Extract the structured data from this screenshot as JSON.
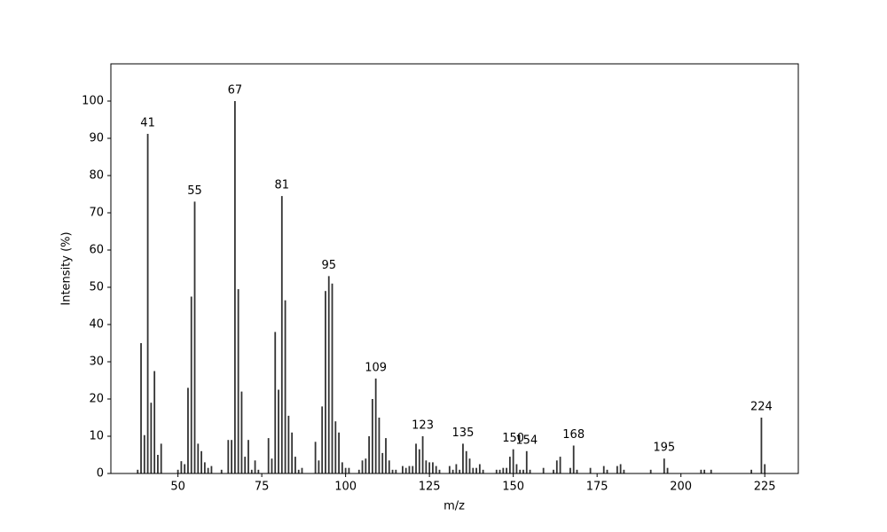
{
  "chart_data": {
    "type": "stem",
    "x_label": "m/z",
    "y_label": "Intensity (%)",
    "color": "#333333",
    "xlim": [
      30,
      235
    ],
    "ylim": [
      0,
      110
    ],
    "xticks": [
      50,
      75,
      100,
      125,
      150,
      175,
      200,
      225
    ],
    "yticks": [
      0,
      10,
      20,
      30,
      40,
      50,
      60,
      70,
      80,
      90,
      100
    ],
    "x": [
      38,
      39,
      40,
      41,
      42,
      43,
      44,
      45,
      50,
      51,
      52,
      53,
      54,
      55,
      56,
      57,
      58,
      59,
      60,
      63,
      65,
      66,
      67,
      68,
      69,
      70,
      71,
      72,
      73,
      74,
      77,
      78,
      79,
      80,
      81,
      82,
      83,
      84,
      85,
      86,
      87,
      91,
      92,
      93,
      94,
      95,
      96,
      97,
      98,
      99,
      100,
      101,
      104,
      105,
      106,
      107,
      108,
      109,
      110,
      111,
      112,
      113,
      114,
      115,
      117,
      118,
      119,
      120,
      121,
      122,
      123,
      124,
      125,
      126,
      127,
      128,
      131,
      132,
      133,
      134,
      135,
      136,
      137,
      138,
      139,
      140,
      141,
      145,
      146,
      147,
      148,
      149,
      150,
      151,
      152,
      153,
      154,
      155,
      159,
      162,
      163,
      164,
      167,
      168,
      169,
      173,
      177,
      178,
      181,
      182,
      183,
      191,
      195,
      196,
      206,
      207,
      209,
      221,
      224,
      225
    ],
    "values": [
      1,
      35,
      10.3,
      91.2,
      19,
      27.5,
      5,
      8,
      1,
      3.3,
      2.5,
      23,
      47.5,
      73,
      8,
      6,
      3,
      1.5,
      2,
      1,
      9,
      9,
      100,
      49.5,
      22,
      4.5,
      9,
      1,
      3.5,
      1,
      9.5,
      4,
      38,
      22.5,
      74.5,
      46.5,
      15.5,
      11,
      4.5,
      1,
      1.5,
      8.5,
      3.5,
      18,
      49,
      53,
      51,
      14,
      11,
      3,
      1.5,
      1.5,
      1,
      3.5,
      4,
      10,
      20,
      25.5,
      15,
      5.5,
      9.5,
      3.5,
      1,
      1,
      2,
      1.5,
      2,
      2,
      8,
      6.5,
      10,
      3.5,
      3,
      3,
      2,
      1,
      2,
      1,
      2.5,
      1,
      8,
      6,
      4,
      1.5,
      1.5,
      2.5,
      1,
      1,
      1,
      1.5,
      1.5,
      4.5,
      6.5,
      2.5,
      1,
      1,
      6,
      1,
      1.5,
      1,
      3.5,
      4.5,
      1.5,
      7.5,
      1,
      1.5,
      2,
      1,
      2,
      2.5,
      1,
      1,
      4,
      1.5,
      1,
      1,
      1,
      1,
      15,
      2.5
    ],
    "peak_labels": [
      41,
      55,
      67,
      81,
      95,
      109,
      123,
      135,
      150,
      154,
      168,
      195,
      224
    ]
  }
}
